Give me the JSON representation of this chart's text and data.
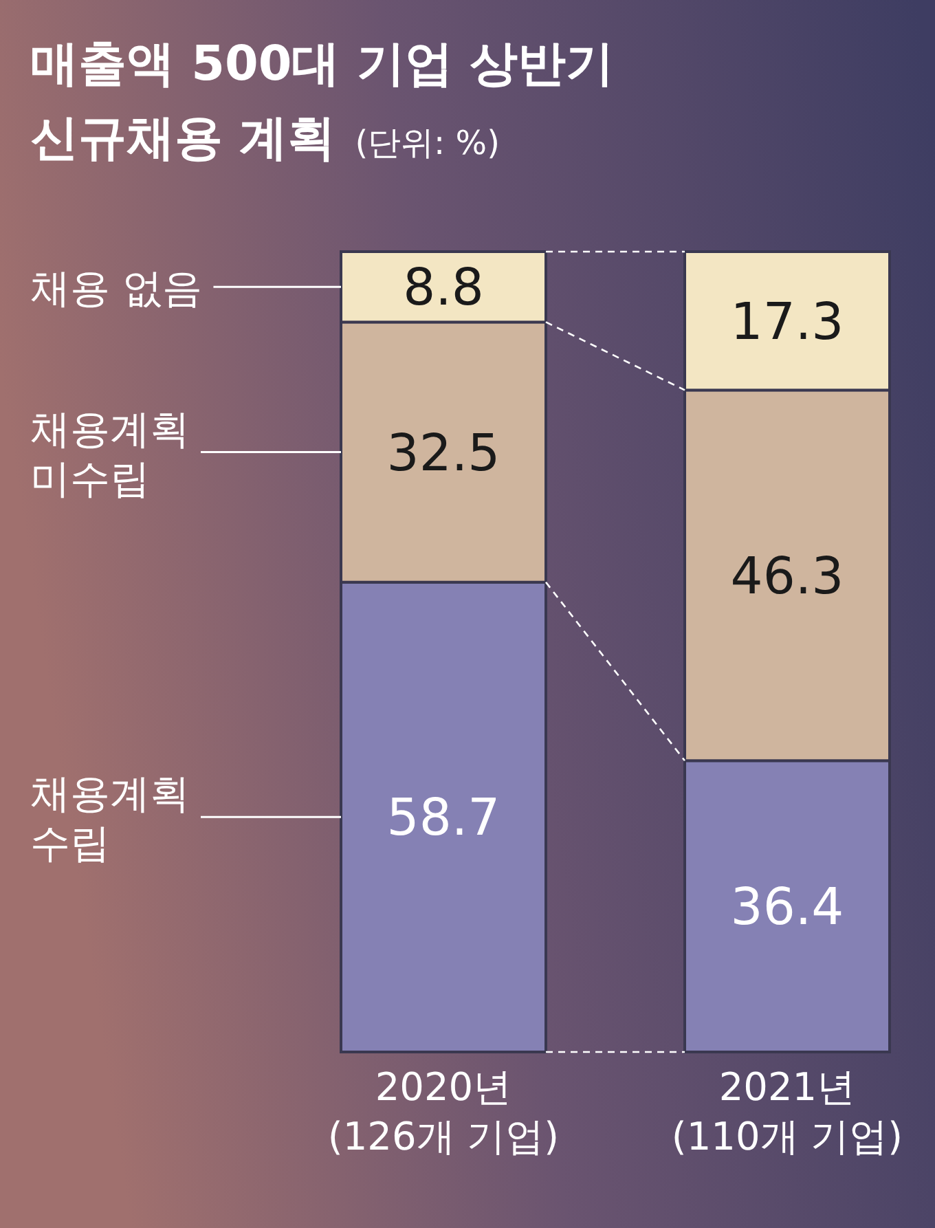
{
  "chart_data": {
    "type": "bar",
    "stacked": true,
    "title": "매출액 500대 기업 상반기\n신규채용 계획",
    "subtitle": "(단위: %)",
    "categories": [
      "2020년\n(126개 기업)",
      "2021년\n(110개 기업)"
    ],
    "series": [
      {
        "name": "채용계획\n수립",
        "color": "#8581b4",
        "values": [
          58.7,
          36.4
        ]
      },
      {
        "name": "채용계획\n미수립",
        "color": "#cfb59e",
        "values": [
          32.5,
          46.3
        ]
      },
      {
        "name": "채용 없음",
        "color": "#f3e6c3",
        "values": [
          8.8,
          17.3
        ]
      }
    ],
    "data_labels": true
  }
}
